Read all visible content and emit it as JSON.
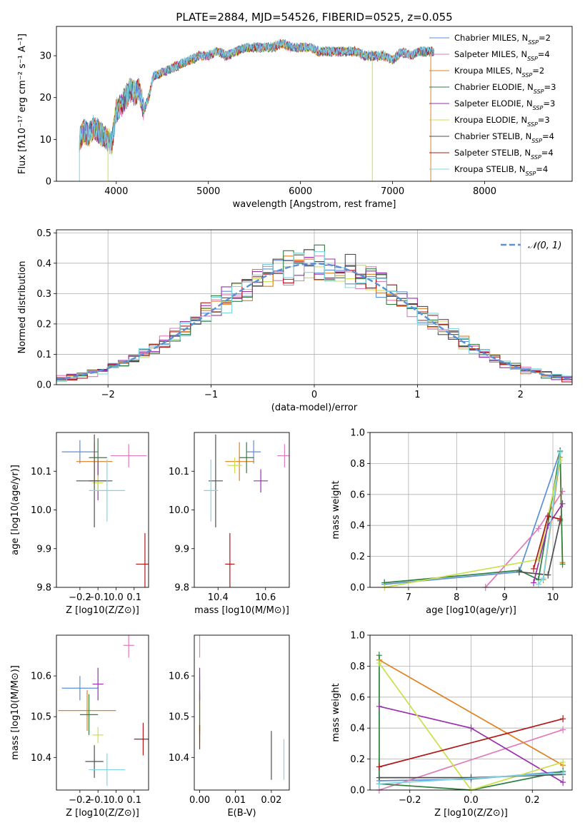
{
  "figure": {
    "title": "PLATE=2884, MJD=54526, FIBERID=0525, z=0.055"
  },
  "colors": [
    "#5b8fd6",
    "#e07ab8",
    "#e0801e",
    "#2f7f3f",
    "#9a2fb0",
    "#c8e04a",
    "#4f4f4f",
    "#b01818",
    "#7fd6e0"
  ],
  "chart_data": [
    {
      "id": "spectrum",
      "type": "line",
      "xlabel": "wavelength [Angstrom, rest frame]",
      "ylabel": "Flux [fλ10⁻¹⁷ erg cm⁻² s⁻¹ A⁻¹]",
      "xlim": [
        3350,
        8950
      ],
      "ylim": [
        0,
        37
      ],
      "xticks": [
        4000,
        5000,
        6000,
        7000,
        8000
      ],
      "yticks": [
        0,
        10,
        20,
        30
      ],
      "legend_placement": "top-right",
      "series": [
        {
          "name": "Chabrier MILES, N_SSP=2"
        },
        {
          "name": "Salpeter MILES, N_SSP=4"
        },
        {
          "name": "Kroupa MILES, N_SSP=2"
        },
        {
          "name": "Chabrier ELODIE, N_SSP=3"
        },
        {
          "name": "Salpeter ELODIE, N_SSP=3"
        },
        {
          "name": "Kroupa ELODIE, N_SSP=3"
        },
        {
          "name": "Chabrier STELIB, N_SSP=4"
        },
        {
          "name": "Salpeter STELIB, N_SSP=4"
        },
        {
          "name": "Kroupa STELIB, N_SSP=4"
        }
      ],
      "envelope": {
        "x": [
          3600,
          3650,
          3700,
          3750,
          3800,
          3850,
          3900,
          3950,
          4000,
          4050,
          4100,
          4150,
          4200,
          4250,
          4300,
          4350,
          4400,
          4500,
          4600,
          4700,
          4800,
          4900,
          5000,
          5100,
          5200,
          5300,
          5400,
          5500,
          5600,
          5700,
          5800,
          5900,
          6000,
          6100,
          6200,
          6300,
          6400,
          6500,
          6600,
          6700,
          6800,
          6900,
          7000,
          7100,
          7200,
          7300,
          7400,
          7450
        ],
        "y": [
          10,
          12,
          11,
          13,
          12,
          11,
          10,
          9,
          17,
          18,
          20,
          22,
          21,
          22,
          17,
          20,
          25,
          26,
          27,
          28,
          29,
          30,
          30,
          31,
          30,
          31,
          32,
          32,
          32,
          32,
          33,
          32,
          32,
          32,
          31,
          31,
          31,
          31,
          31,
          30,
          30,
          30,
          29,
          31,
          30,
          31,
          31,
          31
        ]
      }
    },
    {
      "id": "residuals",
      "type": "histogram",
      "xlabel": "(data-model)/error",
      "ylabel": "Normed distribution",
      "xlim": [
        -2.5,
        2.5
      ],
      "ylim": [
        0,
        0.51
      ],
      "xticks": [
        -2,
        -1,
        0,
        1,
        2
      ],
      "yticks": [
        0.0,
        0.1,
        0.2,
        0.3,
        0.4,
        0.5
      ],
      "grid": true,
      "legend_placement": "top-right",
      "reference": {
        "name": "𝒩(0, 1)",
        "mean": 0,
        "sigma": 1
      },
      "bin_width": 0.1
    },
    {
      "id": "age_vs_Z",
      "type": "scatter",
      "xlabel": "Z [log10(Z/Z⊙)]",
      "ylabel": "age  [log10(age/yr)]",
      "xlim": [
        -0.33,
        0.18
      ],
      "ylim": [
        9.8,
        10.2
      ],
      "xticks": [
        -0.2,
        -0.1,
        0.0,
        0.1
      ],
      "yticks": [
        9.8,
        9.9,
        10.0,
        10.1
      ],
      "points": [
        {
          "x": -0.2,
          "y": 10.15,
          "xerr": 0.1,
          "yerr": 0.03
        },
        {
          "x": 0.07,
          "y": 10.14,
          "xerr": 0.1,
          "yerr": 0.03
        },
        {
          "x": -0.12,
          "y": 10.125,
          "xerr": 0.1,
          "yerr": 0.05
        },
        {
          "x": -0.1,
          "y": 10.135,
          "xerr": 0.05,
          "yerr": 0.05
        },
        {
          "x": -0.1,
          "y": 10.075,
          "xerr": 0.05,
          "yerr": 0.05
        },
        {
          "x": -0.1,
          "y": 10.07,
          "xerr": 0.03,
          "yerr": 0.02
        },
        {
          "x": -0.12,
          "y": 10.075,
          "xerr": 0.1,
          "yerr": 0.12
        },
        {
          "x": 0.16,
          "y": 9.86,
          "xerr": 0.05,
          "yerr": 0.08
        },
        {
          "x": -0.05,
          "y": 10.05,
          "xerr": 0.1,
          "yerr": 0.08
        }
      ]
    },
    {
      "id": "age_vs_mass",
      "type": "scatter",
      "xlabel": "mass [log10(M/M⊙)]",
      "ylabel": "",
      "xlim": [
        10.3,
        10.7
      ],
      "ylim": [
        9.8,
        10.2
      ],
      "xticks": [
        10.4,
        10.6
      ],
      "yticks": [
        9.8,
        9.9,
        10.0,
        10.1
      ],
      "points": [
        {
          "x": 10.55,
          "y": 10.15,
          "xerr": 0.03,
          "yerr": 0.03
        },
        {
          "x": 10.68,
          "y": 10.14,
          "xerr": 0.03,
          "yerr": 0.03
        },
        {
          "x": 10.49,
          "y": 10.125,
          "xerr": 0.06,
          "yerr": 0.05
        },
        {
          "x": 10.52,
          "y": 10.135,
          "xerr": 0.03,
          "yerr": 0.04
        },
        {
          "x": 10.58,
          "y": 10.075,
          "xerr": 0.03,
          "yerr": 0.03
        },
        {
          "x": 10.47,
          "y": 10.115,
          "xerr": 0.03,
          "yerr": 0.02
        },
        {
          "x": 10.39,
          "y": 10.075,
          "xerr": 0.03,
          "yerr": 0.12
        },
        {
          "x": 10.45,
          "y": 9.86,
          "xerr": 0.02,
          "yerr": 0.08
        },
        {
          "x": 10.37,
          "y": 10.05,
          "xerr": 0.03,
          "yerr": 0.08
        }
      ]
    },
    {
      "id": "weight_vs_age",
      "type": "line",
      "xlabel": "age  [log10(age/yr)]",
      "ylabel": "mass weight",
      "xlim": [
        6.2,
        10.4
      ],
      "ylim": [
        0,
        1.0
      ],
      "xticks": [
        7,
        8,
        9,
        10
      ],
      "yticks": [
        0.0,
        0.2,
        0.4,
        0.6,
        0.8,
        1.0
      ],
      "grid": true,
      "series": [
        {
          "x": [
            6.5,
            9.3,
            10.15
          ],
          "y": [
            0.02,
            0.1,
            0.88
          ]
        },
        {
          "x": [
            8.6,
            9.7,
            10.2
          ],
          "y": [
            0.0,
            0.38,
            0.62
          ]
        },
        {
          "x": [
            9.8,
            10.15,
            10.2
          ],
          "y": [
            0.05,
            0.84,
            0.16
          ]
        },
        {
          "x": [
            6.5,
            9.3,
            9.7,
            10.15,
            10.2
          ],
          "y": [
            0.03,
            0.11,
            0.05,
            0.88,
            0.15
          ]
        },
        {
          "x": [
            9.6,
            9.9,
            10.2
          ],
          "y": [
            0.03,
            0.4,
            0.54
          ]
        },
        {
          "x": [
            6.5,
            9.7,
            10.15
          ],
          "y": [
            0.0,
            0.18,
            0.82
          ]
        },
        {
          "x": [
            9.3,
            9.9,
            10.15
          ],
          "y": [
            0.1,
            0.08,
            0.43
          ]
        },
        {
          "x": [
            9.6,
            9.9,
            10.15
          ],
          "y": [
            0.12,
            0.46,
            0.44
          ]
        },
        {
          "x": [
            9.7,
            9.8,
            10.15
          ],
          "y": [
            0.02,
            0.06,
            0.87
          ]
        }
      ]
    },
    {
      "id": "mass_vs_Z",
      "type": "scatter",
      "xlabel": "Z [log10(Z/Z⊙)]",
      "ylabel": "mass [log10(M/M⊙)]",
      "xlim": [
        -0.33,
        0.18
      ],
      "ylim": [
        10.32,
        10.7
      ],
      "xticks": [
        -0.2,
        -0.1,
        0.0,
        0.1
      ],
      "yticks": [
        10.4,
        10.5,
        10.6
      ],
      "points": [
        {
          "x": -0.2,
          "y": 10.57,
          "xerr": 0.1,
          "yerr": 0.03
        },
        {
          "x": 0.07,
          "y": 10.675,
          "xerr": 0.03,
          "yerr": 0.03
        },
        {
          "x": -0.16,
          "y": 10.515,
          "xerr": 0.16,
          "yerr": 0.05
        },
        {
          "x": -0.15,
          "y": 10.505,
          "xerr": 0.05,
          "yerr": 0.05
        },
        {
          "x": -0.1,
          "y": 10.58,
          "xerr": 0.03,
          "yerr": 0.04
        },
        {
          "x": -0.1,
          "y": 10.455,
          "xerr": 0.03,
          "yerr": 0.02
        },
        {
          "x": -0.12,
          "y": 10.39,
          "xerr": 0.05,
          "yerr": 0.04
        },
        {
          "x": 0.15,
          "y": 10.445,
          "xerr": 0.05,
          "yerr": 0.04
        },
        {
          "x": -0.05,
          "y": 10.37,
          "xerr": 0.1,
          "yerr": 0.04
        }
      ]
    },
    {
      "id": "mass_vs_ebv",
      "type": "scatter",
      "xlabel": "E(B-V)",
      "ylabel": "",
      "xlim": [
        -0.0015,
        0.025
      ],
      "ylim": [
        10.32,
        10.7
      ],
      "xticks": [
        0.0,
        0.01,
        0.02
      ],
      "yticks": [
        10.4,
        10.5,
        10.6
      ],
      "points": [
        {
          "x": 0.0,
          "y": 10.57,
          "yerr": 0.03
        },
        {
          "x": 0.0,
          "y": 10.675,
          "yerr": 0.03
        },
        {
          "x": 0.0,
          "y": 10.515,
          "yerr": 0.05
        },
        {
          "x": 0.0,
          "y": 10.505,
          "yerr": 0.05
        },
        {
          "x": 0.0,
          "y": 10.58,
          "yerr": 0.04
        },
        {
          "x": 0.0,
          "y": 10.455,
          "yerr": 0.02
        },
        {
          "x": 0.02,
          "y": 10.405,
          "yerr": 0.06
        },
        {
          "x": 0.0,
          "y": 10.45,
          "yerr": 0.03
        },
        {
          "x": 0.0235,
          "y": 10.395,
          "yerr": 0.05
        }
      ]
    },
    {
      "id": "weight_vs_Z",
      "type": "line",
      "xlabel": "Z [log10(Z/Z⊙)]",
      "ylabel": "mass weight",
      "xlim": [
        -0.33,
        0.33
      ],
      "ylim": [
        0,
        1.0
      ],
      "xticks": [
        -0.2,
        0.0,
        0.2
      ],
      "yticks": [
        0.0,
        0.2,
        0.4,
        0.6,
        0.8,
        1.0
      ],
      "grid": true,
      "series": [
        {
          "x": [
            -0.3,
            0.0,
            0.3
          ],
          "y": [
            0.06,
            0.07,
            0.12
          ]
        },
        {
          "x": [
            -0.3,
            0.3
          ],
          "y": [
            0.0,
            0.39
          ]
        },
        {
          "x": [
            -0.3,
            0.3
          ],
          "y": [
            0.84,
            0.16
          ]
        },
        {
          "x": [
            -0.3,
            -0.3,
            0.0,
            0.3
          ],
          "y": [
            0.87,
            0.04,
            0.0,
            0.12
          ]
        },
        {
          "x": [
            -0.3,
            0.0,
            0.3
          ],
          "y": [
            0.54,
            0.4,
            0.05
          ]
        },
        {
          "x": [
            -0.3,
            0.0,
            0.3
          ],
          "y": [
            0.82,
            0.0,
            0.18
          ]
        },
        {
          "x": [
            -0.3,
            0.0,
            0.3
          ],
          "y": [
            0.08,
            0.08,
            0.1
          ]
        },
        {
          "x": [
            -0.3,
            0.3
          ],
          "y": [
            0.15,
            0.46
          ]
        },
        {
          "x": [
            -0.3,
            0.3
          ],
          "y": [
            0.04,
            0.11
          ]
        }
      ]
    }
  ]
}
